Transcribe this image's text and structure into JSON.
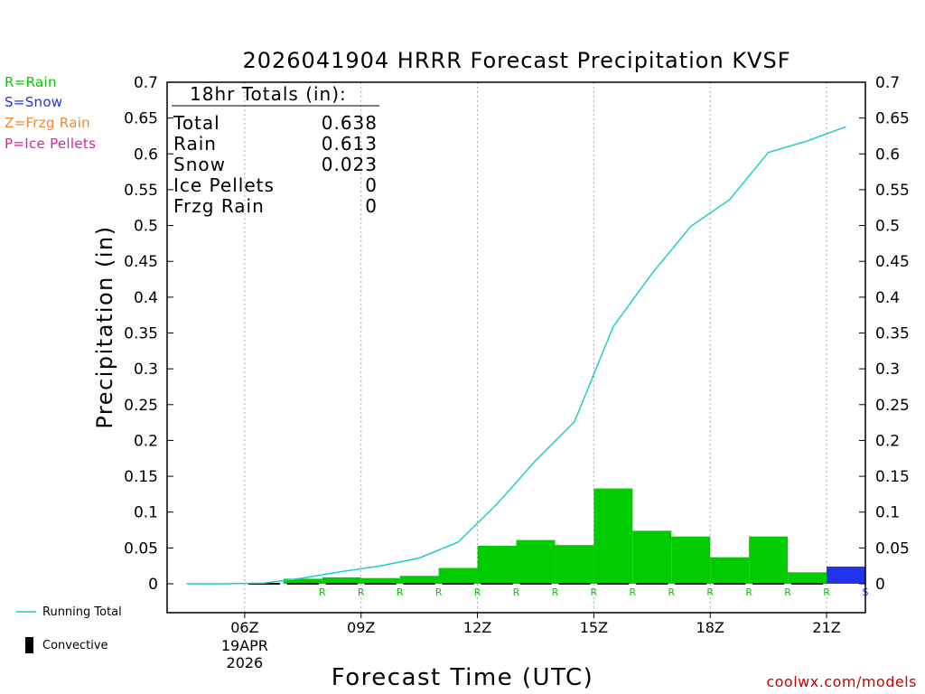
{
  "title": "2026041904 HRRR Forecast Precipitation KVSF",
  "legend": {
    "rain": {
      "label": "R=Rain",
      "color": "#00cc00"
    },
    "snow": {
      "label": "S=Snow",
      "color": "#2233ee"
    },
    "frzg_rain": {
      "label": "Z=Frzg Rain",
      "color": "#ee8833"
    },
    "ice_pellets": {
      "label": "P=Ice Pellets",
      "color": "#dd2299"
    }
  },
  "bottom_legend": {
    "running_total": "Running Total",
    "convective": "Convective"
  },
  "credit": "coolwx.com/models",
  "totals": {
    "header": "18hr Totals (in):",
    "rows": [
      {
        "label": "Total",
        "value": "0.638"
      },
      {
        "label": "Rain",
        "value": "0.613"
      },
      {
        "label": "Snow",
        "value": "0.023"
      },
      {
        "label": "Ice Pellets",
        "value": "0"
      },
      {
        "label": "Frzg Rain",
        "value": "0"
      }
    ]
  },
  "chart_data": {
    "type": "bar",
    "title": "2026041904 HRRR Forecast Precipitation KVSF",
    "xlabel": "Forecast Time (UTC)",
    "ylabel": "Precipitation (in)",
    "ylim": [
      0,
      0.7
    ],
    "yticks": [
      0,
      0.05,
      0.1,
      0.15,
      0.2,
      0.25,
      0.3,
      0.35,
      0.4,
      0.45,
      0.5,
      0.55,
      0.6,
      0.65,
      0.7
    ],
    "ytick_labels": [
      "0",
      "0.05",
      "0.1",
      "0.15",
      "0.2",
      "0.25",
      "0.3",
      "0.35",
      "0.4",
      "0.45",
      "0.5",
      "0.55",
      "0.6",
      "0.65",
      "0.7"
    ],
    "xlim_hours": [
      4,
      22
    ],
    "xticks": [
      {
        "hour": 6,
        "label": "06Z",
        "sub": [
          "19APR",
          "2026"
        ]
      },
      {
        "hour": 9,
        "label": "09Z"
      },
      {
        "hour": 12,
        "label": "12Z"
      },
      {
        "hour": 15,
        "label": "15Z"
      },
      {
        "hour": 18,
        "label": "18Z"
      },
      {
        "hour": 21,
        "label": "21Z"
      }
    ],
    "bars": [
      {
        "hour": 5,
        "value": 0.0,
        "type": "",
        "convective": 0.0
      },
      {
        "hour": 6,
        "value": 0.0,
        "type": "",
        "convective": 0.0
      },
      {
        "hour": 7,
        "value": 0.001,
        "type": "",
        "convective": 0.001
      },
      {
        "hour": 8,
        "value": 0.007,
        "type": "R",
        "convective": 0.001
      },
      {
        "hour": 9,
        "value": 0.009,
        "type": "R",
        "convective": 0.001
      },
      {
        "hour": 10,
        "value": 0.008,
        "type": "R",
        "convective": 0.001
      },
      {
        "hour": 11,
        "value": 0.011,
        "type": "R",
        "convective": 0.001
      },
      {
        "hour": 12,
        "value": 0.022,
        "type": "R",
        "convective": 0.001
      },
      {
        "hour": 13,
        "value": 0.053,
        "type": "R",
        "convective": 0.001
      },
      {
        "hour": 14,
        "value": 0.061,
        "type": "R",
        "convective": 0.001
      },
      {
        "hour": 15,
        "value": 0.054,
        "type": "R",
        "convective": 0.001
      },
      {
        "hour": 16,
        "value": 0.133,
        "type": "R",
        "convective": 0.001
      },
      {
        "hour": 17,
        "value": 0.074,
        "type": "R",
        "convective": 0.001
      },
      {
        "hour": 18,
        "value": 0.066,
        "type": "R",
        "convective": 0.001
      },
      {
        "hour": 19,
        "value": 0.037,
        "type": "R",
        "convective": 0.001
      },
      {
        "hour": 20,
        "value": 0.066,
        "type": "R",
        "convective": 0.001
      },
      {
        "hour": 21,
        "value": 0.016,
        "type": "R",
        "convective": 0.001
      },
      {
        "hour": 22,
        "value": 0.024,
        "type": "S",
        "convective": 0.0
      }
    ],
    "series": [
      {
        "name": "Running Total",
        "color": "#22cccc",
        "hours": [
          4.5,
          5.5,
          6.5,
          7.5,
          8.5,
          9.5,
          10.5,
          11.5,
          12.5,
          13.5,
          14.5,
          15.5,
          16.5,
          17.5,
          18.5,
          19.5,
          20.5,
          21.5
        ],
        "values": [
          0.0,
          0.0,
          0.001,
          0.008,
          0.017,
          0.025,
          0.036,
          0.058,
          0.111,
          0.172,
          0.226,
          0.359,
          0.433,
          0.499,
          0.536,
          0.602,
          0.618,
          0.638
        ]
      }
    ]
  }
}
